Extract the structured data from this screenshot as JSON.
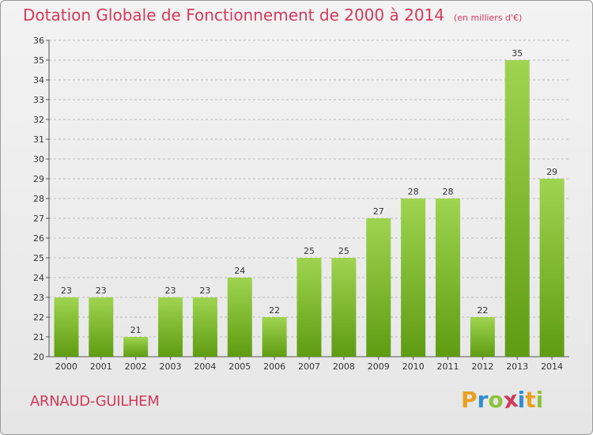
{
  "header": {
    "title": "Dotation Globale de Fonctionnement de 2000 à 2014",
    "unit": "(en milliers d'€)"
  },
  "footer": {
    "commune": "ARNAUD-GUILHEM",
    "brand": [
      "P",
      "r",
      "o",
      "x",
      "i",
      "t",
      "i"
    ],
    "brand_colors": [
      "#e8a020",
      "#2f8fd0",
      "#8fc23e",
      "#d23a5a",
      "#2f8fd0",
      "#e8a020",
      "#8fc23e"
    ]
  },
  "colors": {
    "title": "#d23a5a",
    "bar_light": "#9fd450",
    "bar_dark": "#5f9c12",
    "grid": "#bbbbbb"
  },
  "chart_data": {
    "type": "bar",
    "title": "Dotation Globale de Fonctionnement de 2000 à 2014",
    "subtitle": "(en milliers d'€)",
    "xlabel": "",
    "ylabel": "",
    "categories": [
      "2000",
      "2001",
      "2002",
      "2003",
      "2004",
      "2005",
      "2006",
      "2007",
      "2008",
      "2009",
      "2010",
      "2011",
      "2012",
      "2013",
      "2014"
    ],
    "values": [
      23,
      23,
      21,
      23,
      23,
      24,
      22,
      25,
      25,
      27,
      28,
      28,
      22,
      35,
      29
    ],
    "ylim": [
      20,
      36
    ],
    "yticks": [
      20,
      21,
      22,
      23,
      24,
      25,
      26,
      27,
      28,
      29,
      30,
      31,
      32,
      33,
      34,
      35,
      36
    ],
    "grid": true,
    "legend": "none"
  }
}
